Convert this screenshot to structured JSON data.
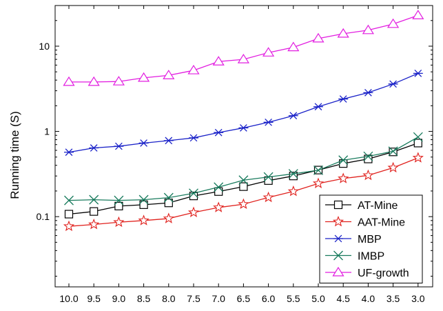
{
  "chart_data": {
    "type": "line",
    "title": "",
    "xlabel": "",
    "ylabel": "Running time (S)",
    "y_scale": "log",
    "ylim": [
      0.015,
      30
    ],
    "y_ticks": [
      0.1,
      1,
      10
    ],
    "y_tick_labels": [
      "0.1",
      "1",
      "10"
    ],
    "grid": false,
    "legend_position": "bottom-right",
    "categories": [
      "10.0",
      "9.5",
      "9.0",
      "8.5",
      "8.0",
      "7.5",
      "7.0",
      "6.5",
      "6.0",
      "5.5",
      "5.0",
      "4.5",
      "4.0",
      "3.5",
      "3.0"
    ],
    "series": [
      {
        "name": "AT-Mine",
        "color": "#000000",
        "marker": "square",
        "values": [
          0.107,
          0.115,
          0.133,
          0.138,
          0.145,
          0.175,
          0.197,
          0.225,
          0.265,
          0.3,
          0.352,
          0.42,
          0.475,
          0.575,
          0.73
        ]
      },
      {
        "name": "AAT-Mine",
        "color": "#e0201c",
        "marker": "star",
        "values": [
          0.077,
          0.081,
          0.086,
          0.09,
          0.095,
          0.112,
          0.128,
          0.14,
          0.168,
          0.198,
          0.245,
          0.28,
          0.305,
          0.375,
          0.49
        ]
      },
      {
        "name": "MBP",
        "color": "#1a22c8",
        "marker": "asterisk",
        "values": [
          0.57,
          0.64,
          0.67,
          0.73,
          0.78,
          0.84,
          0.97,
          1.1,
          1.28,
          1.53,
          1.95,
          2.4,
          2.85,
          3.6,
          4.8
        ]
      },
      {
        "name": "IMBP",
        "color": "#177a5c",
        "marker": "x",
        "values": [
          0.155,
          0.158,
          0.155,
          0.158,
          0.167,
          0.188,
          0.222,
          0.268,
          0.292,
          0.318,
          0.35,
          0.46,
          0.51,
          0.585,
          0.86
        ]
      },
      {
        "name": "UF-growth",
        "color": "#e21ce0",
        "marker": "triangle",
        "values": [
          3.8,
          3.8,
          3.85,
          4.25,
          4.55,
          5.2,
          6.6,
          7.0,
          8.4,
          9.7,
          12.3,
          14.0,
          15.4,
          18.2,
          23.0
        ]
      }
    ]
  }
}
